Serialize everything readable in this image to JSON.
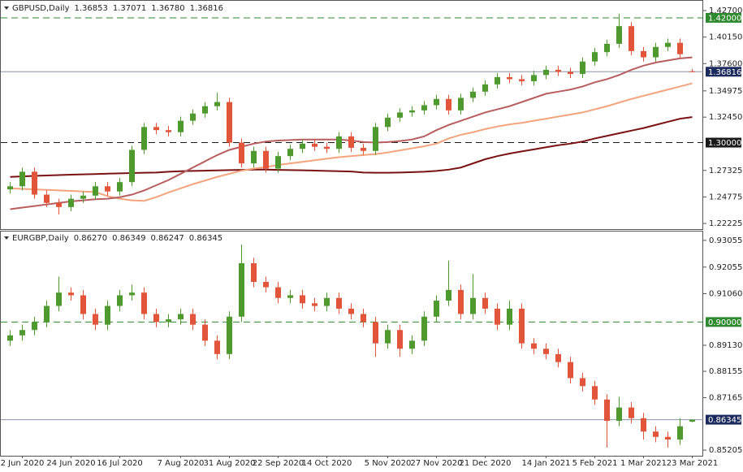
{
  "chart_data": [
    {
      "type": "candlestick",
      "symbol": "GBPUSD,Daily",
      "header_values": [
        "1.36853",
        "1.37071",
        "1.36780",
        "1.36816"
      ],
      "up_color": "#4f9a2f",
      "down_color": "#e2553a",
      "ylim": [
        1.2176,
        1.4348
      ],
      "yticks": [
        {
          "value": 1.427,
          "label": "1.42700"
        },
        {
          "value": 1.4015,
          "label": "1.40150"
        },
        {
          "value": 1.376,
          "label": "1.37600"
        },
        {
          "value": 1.34975,
          "label": "1.34975"
        },
        {
          "value": 1.3245,
          "label": "1.32450"
        },
        {
          "value": 1.27325,
          "label": "1.27325"
        },
        {
          "value": 1.24775,
          "label": "1.24775"
        },
        {
          "value": 1.22225,
          "label": "1.22225"
        }
      ],
      "levels": [
        {
          "value": 1.42,
          "label": "1.42000",
          "style": "dashed",
          "color": "#2f8a2f"
        },
        {
          "value": 1.36816,
          "label": "1.36816",
          "style": "solid",
          "color": "#1c2b5e"
        },
        {
          "value": 1.3,
          "label": "1.30000",
          "style": "dashed",
          "color": "#1a1a1a"
        }
      ],
      "open": [
        1.255,
        1.258,
        1.272,
        1.25,
        1.242,
        1.238,
        1.246,
        1.249,
        1.258,
        1.253,
        1.262,
        1.293,
        1.315,
        1.312,
        1.31,
        1.321,
        1.328,
        1.335,
        1.339,
        1.3,
        1.28,
        1.292,
        1.275,
        1.287,
        1.294,
        1.299,
        1.296,
        1.294,
        1.306,
        1.295,
        1.292,
        1.315,
        1.324,
        1.329,
        1.331,
        1.336,
        1.342,
        1.331,
        1.343,
        1.349,
        1.356,
        1.363,
        1.361,
        1.359,
        1.365,
        1.37,
        1.368,
        1.366,
        1.378,
        1.387,
        1.395,
        1.412,
        1.388,
        1.382,
        1.392,
        1.396,
        1.36853
      ],
      "high": [
        1.262,
        1.276,
        1.276,
        1.254,
        1.246,
        1.25,
        1.253,
        1.262,
        1.262,
        1.266,
        1.297,
        1.319,
        1.319,
        1.316,
        1.325,
        1.332,
        1.339,
        1.348,
        1.343,
        1.304,
        1.296,
        1.296,
        1.291,
        1.298,
        1.303,
        1.303,
        1.3,
        1.31,
        1.31,
        1.299,
        1.319,
        1.328,
        1.333,
        1.335,
        1.34,
        1.346,
        1.346,
        1.347,
        1.353,
        1.36,
        1.367,
        1.367,
        1.365,
        1.369,
        1.374,
        1.374,
        1.372,
        1.382,
        1.391,
        1.399,
        1.424,
        1.416,
        1.392,
        1.396,
        1.4,
        1.4,
        1.37071
      ],
      "low": [
        1.251,
        1.254,
        1.246,
        1.238,
        1.231,
        1.234,
        1.242,
        1.245,
        1.249,
        1.249,
        1.258,
        1.289,
        1.308,
        1.306,
        1.306,
        1.317,
        1.324,
        1.331,
        1.296,
        1.276,
        1.276,
        1.271,
        1.271,
        1.283,
        1.29,
        1.292,
        1.29,
        1.29,
        1.291,
        1.288,
        1.288,
        1.311,
        1.32,
        1.325,
        1.327,
        1.332,
        1.327,
        1.327,
        1.339,
        1.345,
        1.352,
        1.357,
        1.355,
        1.355,
        1.361,
        1.364,
        1.362,
        1.362,
        1.374,
        1.383,
        1.391,
        1.384,
        1.378,
        1.378,
        1.388,
        1.381,
        1.3678
      ],
      "close": [
        1.258,
        1.272,
        1.25,
        1.242,
        1.238,
        1.246,
        1.249,
        1.258,
        1.253,
        1.262,
        1.293,
        1.315,
        1.312,
        1.31,
        1.321,
        1.328,
        1.335,
        1.339,
        1.3,
        1.28,
        1.292,
        1.275,
        1.287,
        1.294,
        1.299,
        1.296,
        1.294,
        1.306,
        1.295,
        1.292,
        1.315,
        1.324,
        1.329,
        1.331,
        1.336,
        1.342,
        1.331,
        1.343,
        1.349,
        1.356,
        1.363,
        1.361,
        1.359,
        1.365,
        1.37,
        1.368,
        1.366,
        1.378,
        1.387,
        1.395,
        1.412,
        1.388,
        1.382,
        1.392,
        1.396,
        1.385,
        1.36816
      ],
      "overlays": [
        {
          "color": "#7a1212",
          "values": [
            1.267,
            1.2675,
            1.268,
            1.2684,
            1.2688,
            1.2692,
            1.2695,
            1.2698,
            1.2701,
            1.2704,
            1.2707,
            1.271,
            1.2712,
            1.272,
            1.2725,
            1.2728,
            1.273,
            1.2733,
            1.2736,
            1.2738,
            1.274,
            1.274,
            1.2738,
            1.2736,
            1.2734,
            1.2731,
            1.2728,
            1.2725,
            1.2722,
            1.2712,
            1.271,
            1.271,
            1.2712,
            1.2716,
            1.272,
            1.2728,
            1.274,
            1.276,
            1.28,
            1.284,
            1.287,
            1.2895,
            1.2915,
            1.2935,
            1.2955,
            1.2975,
            1.299,
            1.301,
            1.304,
            1.3065,
            1.309,
            1.3115,
            1.314,
            1.317,
            1.32,
            1.323,
            1.3245
          ]
        },
        {
          "color": "#f5a37c",
          "values": [
            1.256,
            1.2555,
            1.255,
            1.2545,
            1.254,
            1.2535,
            1.253,
            1.2525,
            1.2485,
            1.246,
            1.2445,
            1.244,
            1.2475,
            1.252,
            1.256,
            1.26,
            1.2635,
            1.267,
            1.27,
            1.273,
            1.275,
            1.2765,
            1.2785,
            1.28,
            1.2815,
            1.283,
            1.2845,
            1.286,
            1.287,
            1.288,
            1.289,
            1.2905,
            1.2925,
            1.2945,
            1.2965,
            1.299,
            1.304,
            1.3075,
            1.31,
            1.313,
            1.3155,
            1.3175,
            1.319,
            1.321,
            1.323,
            1.325,
            1.327,
            1.329,
            1.332,
            1.335,
            1.3385,
            1.342,
            1.345,
            1.348,
            1.351,
            1.354,
            1.357
          ]
        },
        {
          "color": "#b85e5e",
          "values": [
            1.236,
            1.2375,
            1.239,
            1.2405,
            1.242,
            1.2435,
            1.2445,
            1.2455,
            1.246,
            1.2475,
            1.25,
            1.254,
            1.259,
            1.264,
            1.27,
            1.276,
            1.282,
            1.288,
            1.293,
            1.296,
            1.299,
            1.301,
            1.302,
            1.3025,
            1.303,
            1.303,
            1.303,
            1.303,
            1.302,
            1.3005,
            1.3,
            1.3005,
            1.3015,
            1.303,
            1.306,
            1.312,
            1.317,
            1.321,
            1.325,
            1.329,
            1.332,
            1.335,
            1.339,
            1.343,
            1.347,
            1.349,
            1.351,
            1.354,
            1.358,
            1.361,
            1.365,
            1.37,
            1.374,
            1.377,
            1.379,
            1.381,
            1.382
          ]
        }
      ]
    },
    {
      "type": "candlestick",
      "symbol": "EURGBP,Daily",
      "header_values": [
        "0.86270",
        "0.86349",
        "0.86247",
        "0.86345"
      ],
      "up_color": "#4f9a2f",
      "down_color": "#e2553a",
      "ylim": [
        0.85025,
        0.93355
      ],
      "yticks": [
        {
          "value": 0.93055,
          "label": "0.93055"
        },
        {
          "value": 0.92055,
          "label": "0.92055"
        },
        {
          "value": 0.9106,
          "label": "0.91060"
        },
        {
          "value": 0.8913,
          "label": "0.89130"
        },
        {
          "value": 0.88155,
          "label": "0.88155"
        },
        {
          "value": 0.87165,
          "label": "0.87165"
        },
        {
          "value": 0.85205,
          "label": "0.85205"
        }
      ],
      "levels": [
        {
          "value": 0.9,
          "label": "0.90000",
          "style": "dashed",
          "color": "#2f8a2f"
        },
        {
          "value": 0.86345,
          "label": "0.86345",
          "style": "solid",
          "color": "#1c2b5e"
        }
      ],
      "categories": [
        null,
        "2 Jun 2020",
        null,
        null,
        null,
        "24 Jun 2020",
        null,
        null,
        null,
        "16 Jul 2020",
        null,
        null,
        null,
        null,
        "7 Aug 2020",
        null,
        null,
        null,
        "31 Aug 2020",
        null,
        null,
        null,
        "22 Sep 2020",
        null,
        null,
        null,
        "14 Oct 2020",
        null,
        null,
        null,
        null,
        "5 Nov 2020",
        null,
        null,
        null,
        "27 Nov 2020",
        null,
        null,
        null,
        "21 Dec 2020",
        null,
        null,
        null,
        null,
        "14 Jan 2021",
        null,
        null,
        null,
        "5 Feb 2021",
        null,
        null,
        null,
        "1 Mar 2021",
        null,
        null,
        null,
        "23 Mar 2021"
      ],
      "open": [
        0.893,
        0.895,
        0.897,
        0.9,
        0.906,
        0.911,
        0.91,
        0.903,
        0.899,
        0.906,
        0.91,
        0.911,
        0.903,
        0.9,
        0.901,
        0.903,
        0.899,
        0.893,
        0.888,
        0.902,
        0.922,
        0.915,
        0.913,
        0.909,
        0.91,
        0.907,
        0.906,
        0.909,
        0.905,
        0.903,
        0.9,
        0.892,
        0.897,
        0.89,
        0.893,
        0.902,
        0.908,
        0.912,
        0.903,
        0.909,
        0.905,
        0.899,
        0.905,
        0.892,
        0.89,
        0.888,
        0.885,
        0.879,
        0.876,
        0.871,
        0.863,
        0.868,
        0.864,
        0.859,
        0.857,
        0.856,
        0.8627
      ],
      "high": [
        0.897,
        0.899,
        0.902,
        0.908,
        0.917,
        0.913,
        0.912,
        0.905,
        0.908,
        0.912,
        0.914,
        0.913,
        0.905,
        0.903,
        0.905,
        0.905,
        0.901,
        0.895,
        0.904,
        0.929,
        0.924,
        0.917,
        0.915,
        0.912,
        0.912,
        0.909,
        0.911,
        0.911,
        0.907,
        0.905,
        0.902,
        0.899,
        0.899,
        0.895,
        0.904,
        0.91,
        0.923,
        0.914,
        0.918,
        0.911,
        0.907,
        0.908,
        0.907,
        0.894,
        0.892,
        0.89,
        0.887,
        0.881,
        0.878,
        0.873,
        0.872,
        0.87,
        0.866,
        0.861,
        0.859,
        0.864,
        0.86349
      ],
      "low": [
        0.891,
        0.893,
        0.895,
        0.898,
        0.904,
        0.908,
        0.901,
        0.897,
        0.897,
        0.904,
        0.908,
        0.901,
        0.898,
        0.898,
        0.899,
        0.897,
        0.891,
        0.886,
        0.886,
        0.9,
        0.913,
        0.911,
        0.907,
        0.907,
        0.905,
        0.904,
        0.904,
        0.903,
        0.901,
        0.898,
        0.887,
        0.89,
        0.887,
        0.888,
        0.891,
        0.9,
        0.906,
        0.901,
        0.901,
        0.903,
        0.897,
        0.897,
        0.89,
        0.888,
        0.886,
        0.883,
        0.877,
        0.874,
        0.869,
        0.853,
        0.861,
        0.862,
        0.856,
        0.855,
        0.853,
        0.854,
        0.86247
      ],
      "close": [
        0.895,
        0.897,
        0.9,
        0.906,
        0.911,
        0.91,
        0.903,
        0.899,
        0.906,
        0.91,
        0.911,
        0.903,
        0.9,
        0.901,
        0.903,
        0.899,
        0.893,
        0.888,
        0.902,
        0.922,
        0.915,
        0.913,
        0.909,
        0.91,
        0.907,
        0.906,
        0.909,
        0.905,
        0.903,
        0.9,
        0.892,
        0.897,
        0.89,
        0.893,
        0.902,
        0.908,
        0.912,
        0.903,
        0.909,
        0.905,
        0.899,
        0.905,
        0.892,
        0.89,
        0.888,
        0.885,
        0.879,
        0.876,
        0.871,
        0.863,
        0.868,
        0.864,
        0.859,
        0.857,
        0.856,
        0.861,
        0.86345
      ]
    }
  ]
}
